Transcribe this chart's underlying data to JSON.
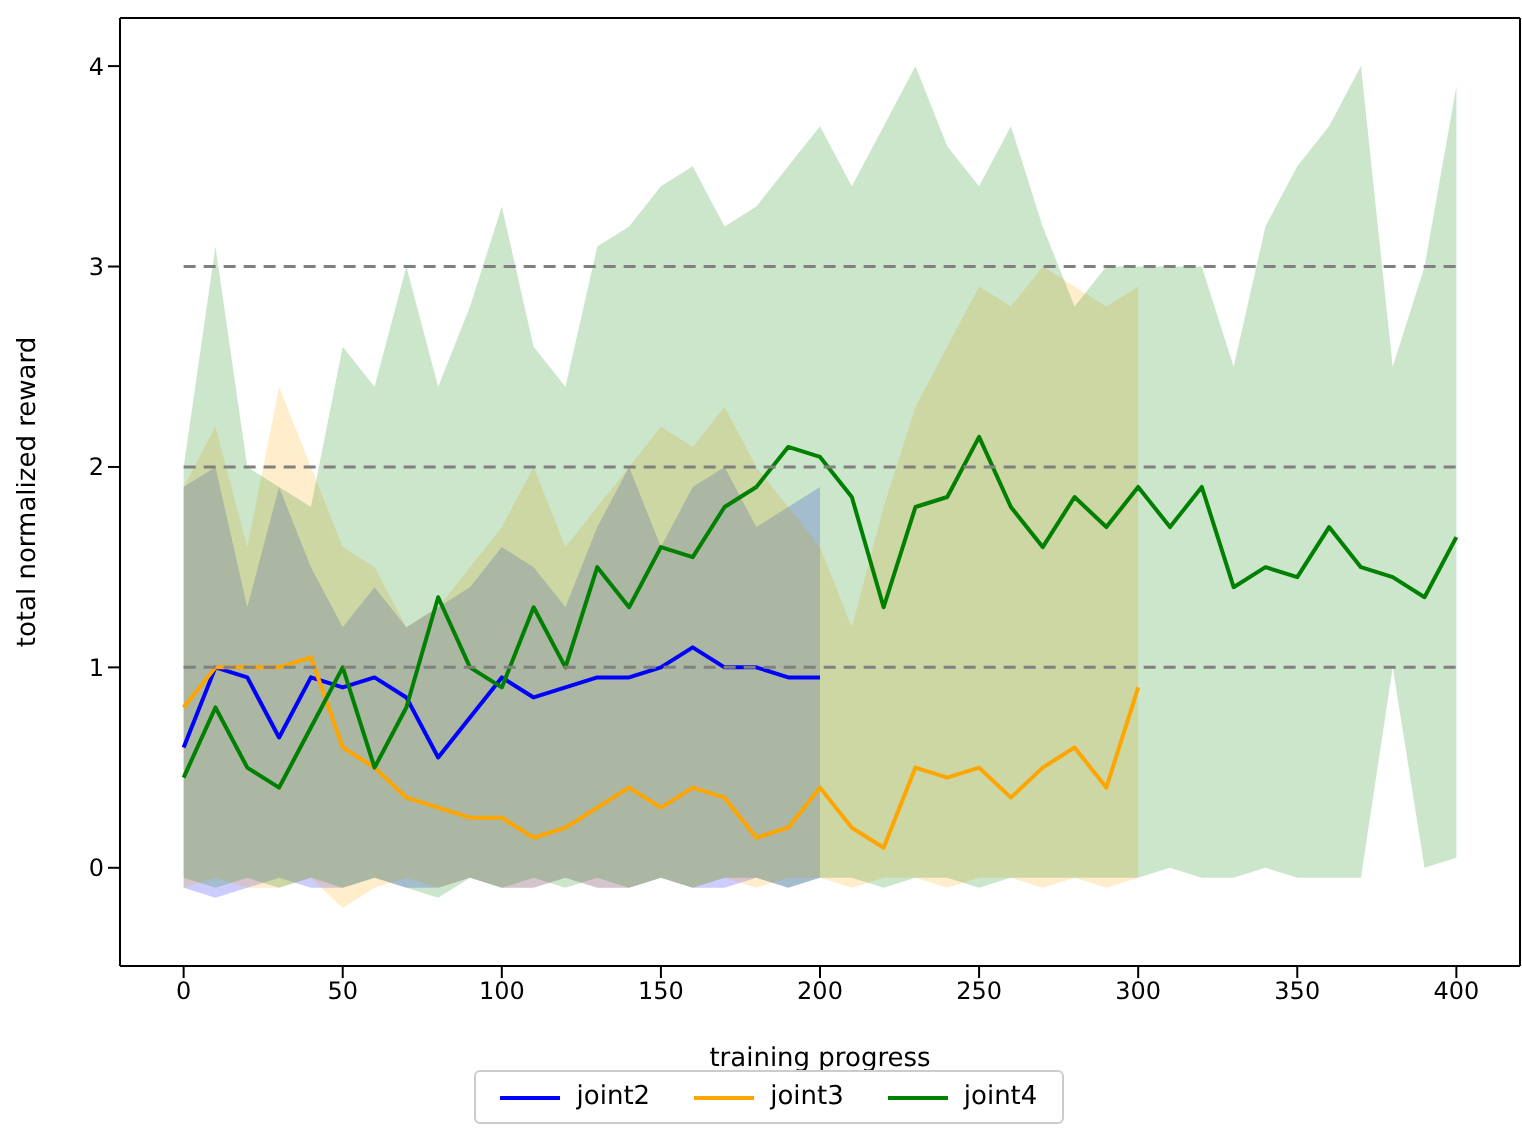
{
  "chart_data": {
    "type": "line",
    "xlabel": "training progress",
    "ylabel": "total normalized reward",
    "xlim": [
      -20,
      420
    ],
    "xticks": [
      0,
      50,
      100,
      150,
      200,
      250,
      300,
      350,
      400
    ],
    "ylim": [
      -0.49,
      4.24
    ],
    "yticks": [
      0,
      1,
      2,
      3,
      4
    ],
    "legend": "bottom",
    "grid": false,
    "ref_lines": [
      {
        "axis": "y",
        "value": 1,
        "color": "#808080",
        "line_style": "dashed"
      },
      {
        "axis": "y",
        "value": 2,
        "color": "#808080",
        "line_style": "dashed"
      },
      {
        "axis": "y",
        "value": 3,
        "color": "#808080",
        "line_style": "dashed"
      }
    ],
    "series": [
      {
        "name": "joint2",
        "color": "#0000ff",
        "x": [
          0,
          10,
          20,
          30,
          40,
          50,
          60,
          70,
          80,
          90,
          100,
          110,
          120,
          130,
          140,
          150,
          160,
          170,
          180,
          190,
          200
        ],
        "values": [
          0.6,
          1.0,
          0.95,
          0.65,
          0.95,
          0.9,
          0.95,
          0.85,
          0.55,
          0.75,
          0.95,
          0.85,
          0.9,
          0.95,
          0.95,
          1.0,
          1.1,
          1.0,
          1.0,
          0.95,
          0.95
        ],
        "lower": [
          -0.1,
          -0.15,
          -0.1,
          -0.05,
          -0.1,
          -0.1,
          -0.05,
          -0.1,
          -0.1,
          -0.05,
          -0.1,
          -0.1,
          -0.05,
          -0.1,
          -0.1,
          -0.05,
          -0.1,
          -0.1,
          -0.05,
          -0.1,
          -0.05
        ],
        "upper": [
          1.9,
          2.0,
          1.3,
          1.9,
          1.5,
          1.2,
          1.4,
          1.2,
          1.3,
          1.4,
          1.6,
          1.5,
          1.3,
          1.7,
          2.0,
          1.6,
          1.9,
          2.0,
          1.7,
          1.8,
          1.9
        ]
      },
      {
        "name": "joint3",
        "color": "#ffa500",
        "x": [
          0,
          10,
          20,
          30,
          40,
          50,
          60,
          70,
          80,
          90,
          100,
          110,
          120,
          130,
          140,
          150,
          160,
          170,
          180,
          190,
          200,
          210,
          220,
          230,
          240,
          250,
          260,
          270,
          280,
          290,
          300
        ],
        "values": [
          0.8,
          1.0,
          1.0,
          1.0,
          1.05,
          0.6,
          0.5,
          0.35,
          0.3,
          0.25,
          0.25,
          0.15,
          0.2,
          0.3,
          0.4,
          0.3,
          0.4,
          0.35,
          0.15,
          0.2,
          0.4,
          0.2,
          0.1,
          0.5,
          0.45,
          0.5,
          0.35,
          0.5,
          0.6,
          0.4,
          0.9
        ],
        "lower": [
          -0.1,
          -0.05,
          -0.1,
          -0.1,
          -0.05,
          -0.2,
          -0.1,
          -0.05,
          -0.1,
          -0.05,
          -0.1,
          -0.1,
          -0.05,
          -0.1,
          -0.1,
          -0.05,
          -0.1,
          -0.05,
          -0.1,
          -0.05,
          -0.05,
          -0.1,
          -0.05,
          -0.05,
          -0.1,
          -0.05,
          -0.05,
          -0.1,
          -0.05,
          -0.1,
          -0.05
        ],
        "upper": [
          1.9,
          2.2,
          1.6,
          2.4,
          2.0,
          1.6,
          1.5,
          1.2,
          1.3,
          1.5,
          1.7,
          2.0,
          1.6,
          1.8,
          2.0,
          2.2,
          2.1,
          2.3,
          2.0,
          1.8,
          1.6,
          1.2,
          1.8,
          2.3,
          2.6,
          2.9,
          2.8,
          3.0,
          2.9,
          2.8,
          2.9
        ]
      },
      {
        "name": "joint4",
        "color": "#008000",
        "x": [
          0,
          10,
          20,
          30,
          40,
          50,
          60,
          70,
          80,
          90,
          100,
          110,
          120,
          130,
          140,
          150,
          160,
          170,
          180,
          190,
          200,
          210,
          220,
          230,
          240,
          250,
          260,
          270,
          280,
          290,
          300,
          310,
          320,
          330,
          340,
          350,
          360,
          370,
          380,
          390,
          400
        ],
        "values": [
          0.45,
          0.8,
          0.5,
          0.4,
          0.7,
          1.0,
          0.5,
          0.8,
          1.35,
          1.0,
          0.9,
          1.3,
          1.0,
          1.5,
          1.3,
          1.6,
          1.55,
          1.8,
          1.9,
          2.1,
          2.05,
          1.85,
          1.3,
          1.8,
          1.85,
          2.15,
          1.8,
          1.6,
          1.85,
          1.7,
          1.9,
          1.7,
          1.9,
          1.4,
          1.5,
          1.45,
          1.7,
          1.5,
          1.45,
          1.35,
          1.65
        ],
        "lower": [
          -0.05,
          -0.1,
          -0.05,
          -0.1,
          -0.05,
          -0.1,
          -0.05,
          -0.1,
          -0.15,
          -0.05,
          -0.1,
          -0.05,
          -0.1,
          -0.05,
          -0.1,
          -0.05,
          -0.1,
          -0.05,
          -0.05,
          -0.1,
          -0.05,
          -0.05,
          -0.1,
          -0.05,
          -0.05,
          -0.1,
          -0.05,
          -0.05,
          -0.05,
          -0.05,
          -0.05,
          0.0,
          -0.05,
          -0.05,
          0.0,
          -0.05,
          -0.05,
          -0.05,
          1.0,
          0.0,
          0.05
        ],
        "upper": [
          2.0,
          3.1,
          2.0,
          1.9,
          1.8,
          2.6,
          2.4,
          3.0,
          2.4,
          2.8,
          3.3,
          2.6,
          2.4,
          3.1,
          3.2,
          3.4,
          3.5,
          3.2,
          3.3,
          3.5,
          3.7,
          3.4,
          3.7,
          4.0,
          3.6,
          3.4,
          3.7,
          3.2,
          2.8,
          3.0,
          3.0,
          3.0,
          3.0,
          2.5,
          3.2,
          3.5,
          3.7,
          4.0,
          2.5,
          3.0,
          3.9
        ]
      }
    ]
  }
}
